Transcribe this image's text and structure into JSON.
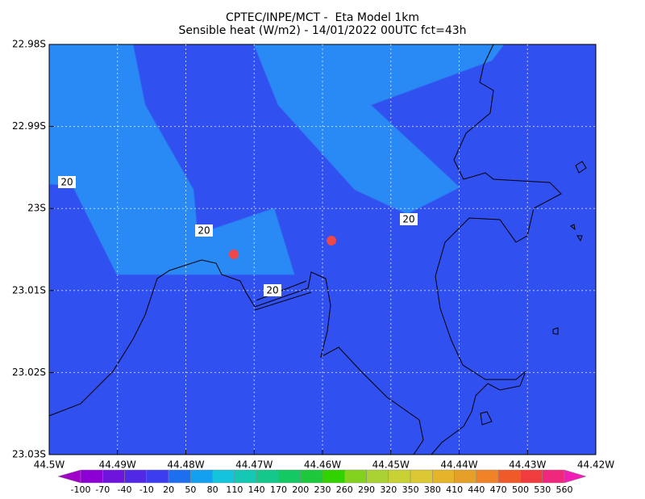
{
  "chart_data": {
    "type": "map",
    "title": "CPTEC/INPE/MCT -  Eta Model 1km",
    "subtitle": "Sensible heat (W/m2) - 14/01/2022 00UTC fct=43h",
    "xlim": [
      -44.5,
      -44.42
    ],
    "ylim": [
      -23.03,
      -22.98
    ],
    "xticks": [
      {
        "value": -44.5,
        "label": "44.5W"
      },
      {
        "value": -44.49,
        "label": "44.49W"
      },
      {
        "value": -44.48,
        "label": "44.48W"
      },
      {
        "value": -44.47,
        "label": "44.47W"
      },
      {
        "value": -44.46,
        "label": "44.46W"
      },
      {
        "value": -44.45,
        "label": "44.45W"
      },
      {
        "value": -44.44,
        "label": "44.44W"
      },
      {
        "value": -44.43,
        "label": "44.43W"
      },
      {
        "value": -44.42,
        "label": "44.42W"
      }
    ],
    "yticks": [
      {
        "value": -22.98,
        "label": "22.98S"
      },
      {
        "value": -22.99,
        "label": "22.99S"
      },
      {
        "value": -23.0,
        "label": "23S"
      },
      {
        "value": -23.01,
        "label": "23.01S"
      },
      {
        "value": -23.02,
        "label": "23.02S"
      },
      {
        "value": -23.03,
        "label": "23.03S"
      }
    ],
    "grid": true,
    "contour_labels": [
      20,
      20,
      20,
      20
    ],
    "colorbar": {
      "levels": [
        -100,
        -70,
        -40,
        -10,
        20,
        50,
        80,
        110,
        140,
        170,
        200,
        230,
        260,
        290,
        320,
        350,
        380,
        410,
        440,
        470,
        500,
        530,
        560
      ],
      "colors": [
        "#a000c8",
        "#8c00d4",
        "#6e14dc",
        "#5028e6",
        "#3c3cf0",
        "#1e6ef0",
        "#14a0f0",
        "#14c3dc",
        "#14c8b4",
        "#14c88c",
        "#14c864",
        "#1ec83c",
        "#32d200",
        "#82d21e",
        "#aad232",
        "#c8d232",
        "#dcc832",
        "#e6b428",
        "#e6a028",
        "#f08228",
        "#f05a28",
        "#f03c3c",
        "#f0287d",
        "#f01eb4"
      ]
    }
  }
}
